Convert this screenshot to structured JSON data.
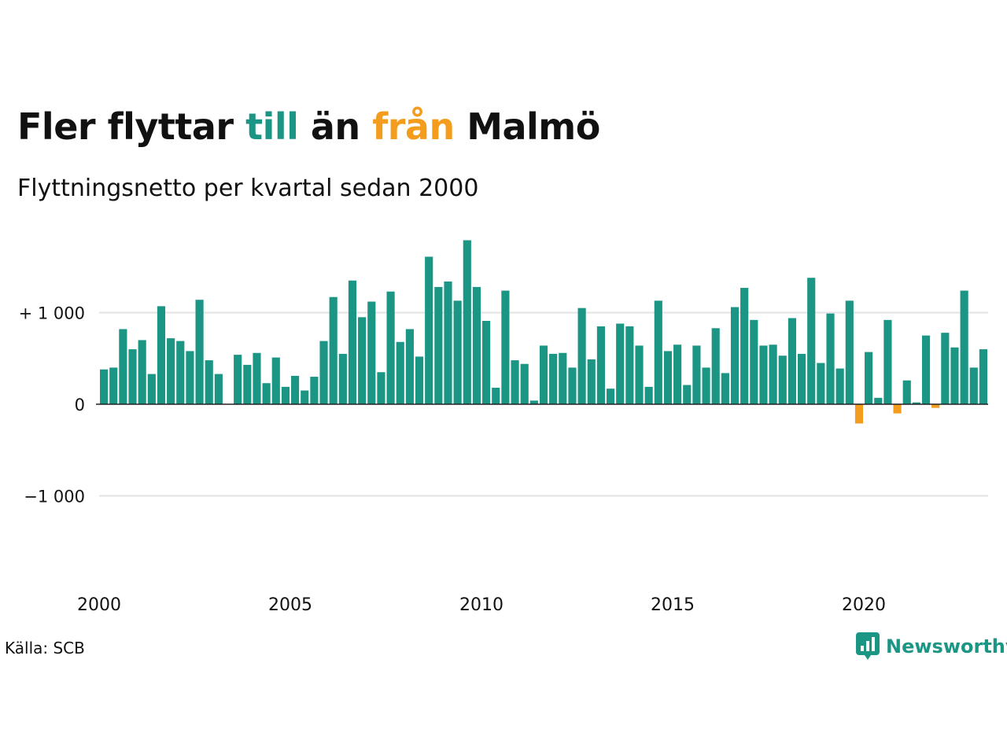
{
  "title": {
    "part1": "Fler flyttar ",
    "till": "till",
    "part2": " än ",
    "fran": "från",
    "part3": " Malmö"
  },
  "subtitle": "Flyttningsnetto per kvartal sedan 2000",
  "source": "Källa: SCB",
  "brand": "Newsworthy",
  "brand_icon": "newsworthy-chart-logo-icon",
  "colors": {
    "positive": "#1b9584",
    "negative": "#f39c1d",
    "grid": "#e3e3e3",
    "zero_line": "#222222"
  },
  "chart_data": {
    "type": "bar",
    "title": "Fler flyttar till än från Malmö",
    "subtitle": "Flyttningsnetto per kvartal sedan 2000",
    "xlabel": "",
    "ylabel": "",
    "x_start": 2000,
    "periods_per_year": 4,
    "xticks": [
      2000,
      2005,
      2010,
      2015,
      2020
    ],
    "yticks": [
      1000,
      0,
      -1000
    ],
    "ytick_labels": [
      "+ 1 000",
      "0",
      "−1 000"
    ],
    "ylim": [
      -2000,
      1800
    ],
    "grid": true,
    "legend": "none",
    "values": [
      380,
      400,
      820,
      600,
      700,
      330,
      1070,
      720,
      690,
      580,
      1140,
      480,
      330,
      0,
      540,
      430,
      560,
      230,
      510,
      190,
      310,
      150,
      300,
      690,
      1170,
      550,
      1350,
      950,
      1120,
      350,
      1230,
      680,
      820,
      520,
      1610,
      1280,
      1340,
      1130,
      1790,
      1280,
      910,
      180,
      1240,
      480,
      440,
      40,
      640,
      550,
      560,
      400,
      1050,
      490,
      850,
      170,
      880,
      850,
      640,
      190,
      1130,
      580,
      650,
      210,
      640,
      400,
      830,
      340,
      1060,
      1270,
      920,
      640,
      650,
      530,
      940,
      550,
      1380,
      450,
      990,
      390,
      1130,
      -210,
      570,
      70,
      920,
      -100,
      260,
      20,
      750,
      -40,
      780,
      620,
      1240,
      400,
      600
    ]
  }
}
